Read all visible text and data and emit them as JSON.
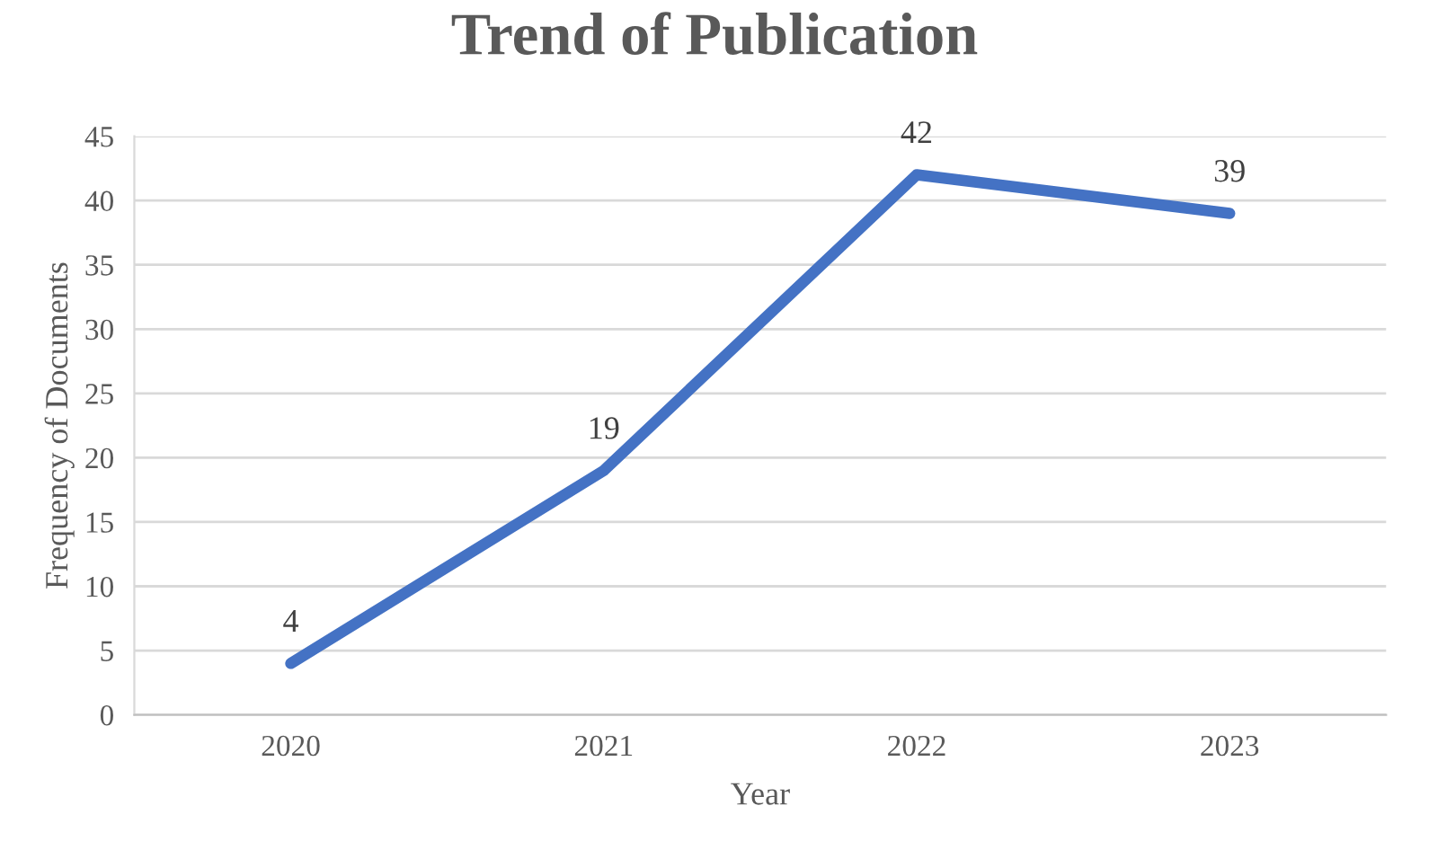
{
  "chart_data": {
    "type": "line",
    "title": "Trend of Publication",
    "xlabel": "Year",
    "ylabel": "Frequency of Documents",
    "categories": [
      "2020",
      "2021",
      "2022",
      "2023"
    ],
    "series": [
      {
        "color": "#4472c4",
        "values": [
          4,
          19,
          42,
          39
        ]
      }
    ],
    "ylim": [
      0,
      45
    ],
    "yticks": [
      0,
      5,
      10,
      15,
      20,
      25,
      30,
      35,
      40,
      45
    ],
    "grid": "y",
    "data_labels": true,
    "marker": "none",
    "line_style": "solid"
  }
}
